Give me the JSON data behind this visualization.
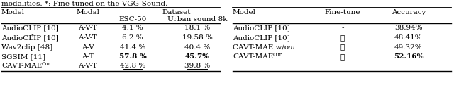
{
  "caption": "modalities. *: Fine-tuned on the VGG-Sound.",
  "left_table": {
    "rows": [
      [
        "AudioCLIP [10]",
        "A-V-T",
        "4.1 %",
        "18.1 %",
        false,
        false
      ],
      [
        "AudioCLIP* [10]",
        "A-V-T",
        "6.2 %",
        "19.58 %",
        false,
        false
      ],
      [
        "Wav2clip [48]",
        "A-V",
        "41.4 %",
        "40.4 %",
        false,
        false
      ],
      [
        "SGSIM [11]",
        "A-T",
        "57.8 %",
        "45.7%",
        true,
        true
      ],
      [
        "CAVT-MAE^Our",
        "A-V-T",
        "42.8 %",
        "39.8 %",
        false,
        false
      ]
    ]
  },
  "right_table": {
    "rows": [
      [
        "AudioCLIP [10]",
        "-",
        "38.94%",
        false
      ],
      [
        "AudioCLIP [10]",
        "✓",
        "48.41%",
        false
      ],
      [
        "CAVT-MAE w/o ^m",
        "✓",
        "49.32%",
        false
      ],
      [
        "CAVT-MAE^Our",
        "✓",
        "52.16%",
        true
      ]
    ],
    "group_break_after": 1
  },
  "bg_color": "#ffffff",
  "text_color": "#000000",
  "line_color": "#000000"
}
